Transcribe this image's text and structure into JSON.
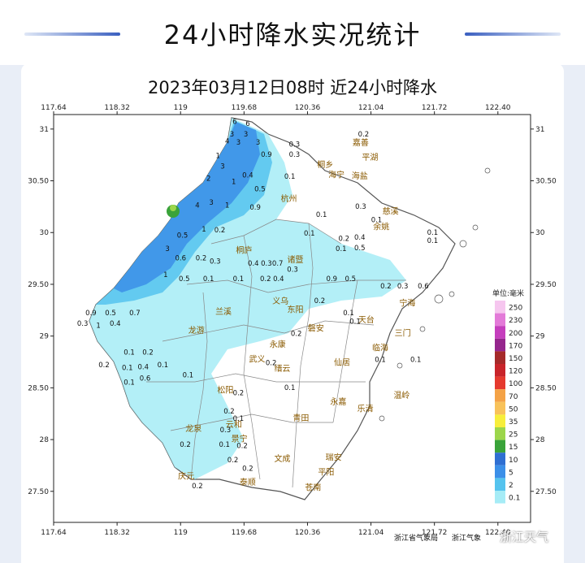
{
  "header": {
    "title": "24小时降水实况统计"
  },
  "map": {
    "title": "2023年03月12日08时  近24小时降水",
    "lon_ticks": [
      "117.64",
      "118.32",
      "119",
      "119.68",
      "120.36",
      "121.04",
      "121.72",
      "122.40"
    ],
    "lat_ticks": [
      "31",
      "30.50",
      "30",
      "29.50",
      "29",
      "28.50",
      "28",
      "27.50"
    ],
    "legend": {
      "unit_label": "单位:毫米",
      "levels": [
        {
          "label": "250",
          "color": "#f6c6ef"
        },
        {
          "label": "230",
          "color": "#e37ad8"
        },
        {
          "label": "200",
          "color": "#c53ebd"
        },
        {
          "label": "170",
          "color": "#95268d"
        },
        {
          "label": "150",
          "color": "#a52a2a"
        },
        {
          "label": "120",
          "color": "#c8242a"
        },
        {
          "label": "100",
          "color": "#e53a2e"
        },
        {
          "label": "70",
          "color": "#f4a246"
        },
        {
          "label": "50",
          "color": "#f8c25a"
        },
        {
          "label": "35",
          "color": "#f7ee3b"
        },
        {
          "label": "25",
          "color": "#9cd64b"
        },
        {
          "label": "15",
          "color": "#3aa33a"
        },
        {
          "label": "10",
          "color": "#2f6fd2"
        },
        {
          "label": "5",
          "color": "#3b8fe8"
        },
        {
          "label": "2",
          "color": "#55c3ee"
        },
        {
          "label": "0.1",
          "color": "#a6ecf6"
        }
      ]
    },
    "cities": [
      {
        "name": "嘉善",
        "lon": 120.93,
        "lat": 30.84
      },
      {
        "name": "平湖",
        "lon": 121.03,
        "lat": 30.7
      },
      {
        "name": "桐乡",
        "lon": 120.55,
        "lat": 30.63
      },
      {
        "name": "海宁",
        "lon": 120.67,
        "lat": 30.53
      },
      {
        "name": "海盐",
        "lon": 120.92,
        "lat": 30.52
      },
      {
        "name": "杭州",
        "lon": 120.16,
        "lat": 30.3
      },
      {
        "name": "慈溪",
        "lon": 121.25,
        "lat": 30.18
      },
      {
        "name": "余姚",
        "lon": 121.15,
        "lat": 30.03
      },
      {
        "name": "桐庐",
        "lon": 119.68,
        "lat": 29.8
      },
      {
        "name": "诸暨",
        "lon": 120.23,
        "lat": 29.71
      },
      {
        "name": "兰溪",
        "lon": 119.46,
        "lat": 29.21
      },
      {
        "name": "义乌",
        "lon": 120.07,
        "lat": 29.31
      },
      {
        "name": "东阳",
        "lon": 120.23,
        "lat": 29.23
      },
      {
        "name": "宁海",
        "lon": 121.43,
        "lat": 29.29
      },
      {
        "name": "天台",
        "lon": 120.99,
        "lat": 29.13
      },
      {
        "name": "磐安",
        "lon": 120.45,
        "lat": 29.05
      },
      {
        "name": "龙游",
        "lon": 119.17,
        "lat": 29.03
      },
      {
        "name": "永康",
        "lon": 120.04,
        "lat": 28.89
      },
      {
        "name": "三门",
        "lon": 121.38,
        "lat": 29.0
      },
      {
        "name": "临海",
        "lon": 121.14,
        "lat": 28.86
      },
      {
        "name": "武义",
        "lon": 119.82,
        "lat": 28.75
      },
      {
        "name": "仙居",
        "lon": 120.73,
        "lat": 28.72
      },
      {
        "name": "缙云",
        "lon": 120.09,
        "lat": 28.66
      },
      {
        "name": "松阳",
        "lon": 119.48,
        "lat": 28.45
      },
      {
        "name": "永嘉",
        "lon": 120.69,
        "lat": 28.34
      },
      {
        "name": "乐清",
        "lon": 120.98,
        "lat": 28.27
      },
      {
        "name": "温岭",
        "lon": 121.37,
        "lat": 28.4
      },
      {
        "name": "青田",
        "lon": 120.29,
        "lat": 28.18
      },
      {
        "name": "龙泉",
        "lon": 119.14,
        "lat": 28.08
      },
      {
        "name": "景宁",
        "lon": 119.63,
        "lat": 27.98
      },
      {
        "name": "云和",
        "lon": 119.57,
        "lat": 28.12
      },
      {
        "name": "文成",
        "lon": 120.09,
        "lat": 27.79
      },
      {
        "name": "瑞安",
        "lon": 120.64,
        "lat": 27.8
      },
      {
        "name": "庆元",
        "lon": 119.06,
        "lat": 27.62
      },
      {
        "name": "泰顺",
        "lon": 119.72,
        "lat": 27.56
      },
      {
        "name": "平阳",
        "lon": 120.56,
        "lat": 27.66
      },
      {
        "name": "苍南",
        "lon": 120.42,
        "lat": 27.51
      }
    ],
    "values": [
      {
        "v": "6",
        "lon": 119.58,
        "lat": 31.05
      },
      {
        "v": "6",
        "lon": 119.72,
        "lat": 31.03
      },
      {
        "v": "0.2",
        "lon": 120.96,
        "lat": 30.93
      },
      {
        "v": "3",
        "lon": 119.55,
        "lat": 30.93
      },
      {
        "v": "3",
        "lon": 119.7,
        "lat": 30.93
      },
      {
        "v": "0.3",
        "lon": 120.22,
        "lat": 30.83
      },
      {
        "v": "4",
        "lon": 119.5,
        "lat": 30.86
      },
      {
        "v": "3",
        "lon": 119.62,
        "lat": 30.85
      },
      {
        "v": "3",
        "lon": 119.83,
        "lat": 30.85
      },
      {
        "v": "1",
        "lon": 119.4,
        "lat": 30.72
      },
      {
        "v": "0.9",
        "lon": 119.92,
        "lat": 30.73
      },
      {
        "v": "0.3",
        "lon": 120.22,
        "lat": 30.73
      },
      {
        "v": "3",
        "lon": 119.45,
        "lat": 30.62
      },
      {
        "v": "0.4",
        "lon": 119.72,
        "lat": 30.53
      },
      {
        "v": "0.1",
        "lon": 120.17,
        "lat": 30.52
      },
      {
        "v": "2",
        "lon": 119.3,
        "lat": 30.5
      },
      {
        "v": "1",
        "lon": 119.57,
        "lat": 30.47
      },
      {
        "v": "0.5",
        "lon": 119.85,
        "lat": 30.4
      },
      {
        "v": "4",
        "lon": 119.18,
        "lat": 30.24
      },
      {
        "v": "3",
        "lon": 119.33,
        "lat": 30.27
      },
      {
        "v": "1",
        "lon": 119.5,
        "lat": 30.24
      },
      {
        "v": "0.9",
        "lon": 119.8,
        "lat": 30.22
      },
      {
        "v": "0.1",
        "lon": 120.51,
        "lat": 30.15
      },
      {
        "v": "0.3",
        "lon": 120.93,
        "lat": 30.23
      },
      {
        "v": "0.1",
        "lon": 121.1,
        "lat": 30.1
      },
      {
        "v": "0.1",
        "lon": 121.7,
        "lat": 29.98
      },
      {
        "v": "0.1",
        "lon": 121.7,
        "lat": 29.9
      },
      {
        "v": "0.5",
        "lon": 119.02,
        "lat": 29.95
      },
      {
        "v": "1",
        "lon": 119.25,
        "lat": 30.01
      },
      {
        "v": "0.2",
        "lon": 119.42,
        "lat": 30.0
      },
      {
        "v": "0.1",
        "lon": 120.38,
        "lat": 29.97
      },
      {
        "v": "0.2",
        "lon": 120.75,
        "lat": 29.92
      },
      {
        "v": "0.4",
        "lon": 120.92,
        "lat": 29.93
      },
      {
        "v": "0.1",
        "lon": 120.72,
        "lat": 29.82
      },
      {
        "v": "0.5",
        "lon": 120.92,
        "lat": 29.83
      },
      {
        "v": "3",
        "lon": 118.86,
        "lat": 29.82
      },
      {
        "v": "0.6",
        "lon": 119.0,
        "lat": 29.73
      },
      {
        "v": "0.2",
        "lon": 119.22,
        "lat": 29.73
      },
      {
        "v": "0.3",
        "lon": 119.37,
        "lat": 29.7
      },
      {
        "v": "0.4",
        "lon": 119.78,
        "lat": 29.68
      },
      {
        "v": "0.3",
        "lon": 119.92,
        "lat": 29.68
      },
      {
        "v": "0.7",
        "lon": 120.04,
        "lat": 29.68
      },
      {
        "v": "0.3",
        "lon": 120.2,
        "lat": 29.62
      },
      {
        "v": "1",
        "lon": 118.84,
        "lat": 29.57
      },
      {
        "v": "0.5",
        "lon": 119.04,
        "lat": 29.53
      },
      {
        "v": "0.1",
        "lon": 119.3,
        "lat": 29.53
      },
      {
        "v": "0.1",
        "lon": 119.62,
        "lat": 29.53
      },
      {
        "v": "0.2",
        "lon": 119.91,
        "lat": 29.53
      },
      {
        "v": "0.4",
        "lon": 120.05,
        "lat": 29.53
      },
      {
        "v": "0.9",
        "lon": 120.62,
        "lat": 29.53
      },
      {
        "v": "0.5",
        "lon": 120.82,
        "lat": 29.53
      },
      {
        "v": "0.2",
        "lon": 121.2,
        "lat": 29.46
      },
      {
        "v": "0.3",
        "lon": 121.38,
        "lat": 29.46
      },
      {
        "v": "0.6",
        "lon": 121.6,
        "lat": 29.46
      },
      {
        "v": "0.9",
        "lon": 118.04,
        "lat": 29.2
      },
      {
        "v": "0.5",
        "lon": 118.25,
        "lat": 29.2
      },
      {
        "v": "0.7",
        "lon": 118.51,
        "lat": 29.2
      },
      {
        "v": "0.3",
        "lon": 117.95,
        "lat": 29.1
      },
      {
        "v": "1",
        "lon": 118.12,
        "lat": 29.08
      },
      {
        "v": "0.4",
        "lon": 118.3,
        "lat": 29.1
      },
      {
        "v": "0.2",
        "lon": 120.49,
        "lat": 29.32
      },
      {
        "v": "0.1",
        "lon": 120.8,
        "lat": 29.2
      },
      {
        "v": "0.1",
        "lon": 120.87,
        "lat": 29.12
      },
      {
        "v": "0.2",
        "lon": 120.24,
        "lat": 29.0
      },
      {
        "v": "0.1",
        "lon": 118.45,
        "lat": 28.82
      },
      {
        "v": "0.1",
        "lon": 118.43,
        "lat": 28.67
      },
      {
        "v": "0.2",
        "lon": 118.65,
        "lat": 28.82
      },
      {
        "v": "0.2",
        "lon": 118.18,
        "lat": 28.7
      },
      {
        "v": "0.4",
        "lon": 118.6,
        "lat": 28.68
      },
      {
        "v": "0.1",
        "lon": 118.81,
        "lat": 28.7
      },
      {
        "v": "0.1",
        "lon": 118.45,
        "lat": 28.53
      },
      {
        "v": "0.6",
        "lon": 118.62,
        "lat": 28.57
      },
      {
        "v": "0.1",
        "lon": 119.08,
        "lat": 28.6
      },
      {
        "v": "0.2",
        "lon": 119.97,
        "lat": 28.72
      },
      {
        "v": "0.1",
        "lon": 120.17,
        "lat": 28.48
      },
      {
        "v": "0.1",
        "lon": 121.14,
        "lat": 28.75
      },
      {
        "v": "0.1",
        "lon": 121.52,
        "lat": 28.75
      },
      {
        "v": "0.2",
        "lon": 119.62,
        "lat": 28.43
      },
      {
        "v": "0.2",
        "lon": 119.52,
        "lat": 28.25
      },
      {
        "v": "0.1",
        "lon": 119.62,
        "lat": 28.18
      },
      {
        "v": "0.3",
        "lon": 119.48,
        "lat": 28.07
      },
      {
        "v": "0.1",
        "lon": 119.47,
        "lat": 27.93
      },
      {
        "v": "0.2",
        "lon": 119.66,
        "lat": 27.92
      },
      {
        "v": "0.2",
        "lon": 119.05,
        "lat": 27.93
      },
      {
        "v": "0.2",
        "lon": 119.56,
        "lat": 27.78
      },
      {
        "v": "0.2",
        "lon": 119.72,
        "lat": 27.7
      },
      {
        "v": "0.2",
        "lon": 119.18,
        "lat": 27.53
      }
    ],
    "footer": {
      "left_credit": "浙江省气象局",
      "right_credit": "浙江气象"
    }
  },
  "watermark": "浙江天气"
}
